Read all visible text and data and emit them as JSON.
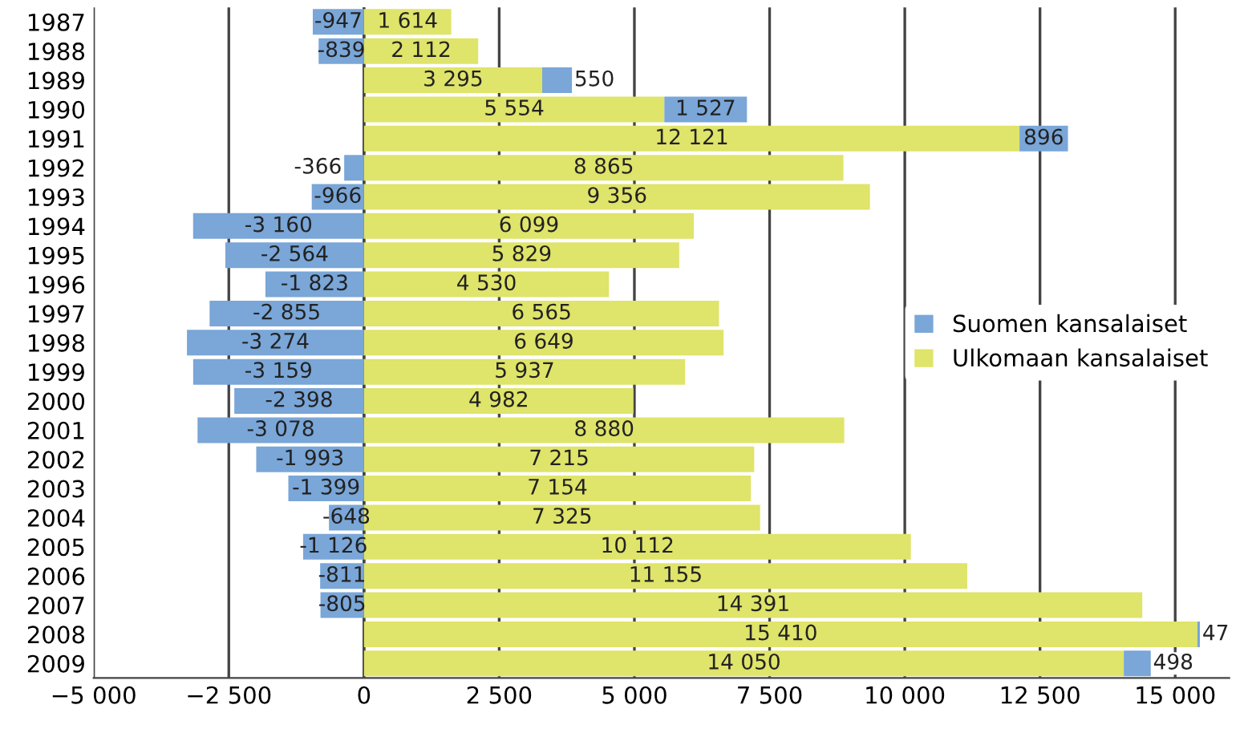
{
  "chart_data": {
    "type": "bar",
    "orientation": "horizontal",
    "stacked": true,
    "categories": [
      "1987",
      "1988",
      "1989",
      "1990",
      "1991",
      "1992",
      "1993",
      "1994",
      "1995",
      "1996",
      "1997",
      "1998",
      "1999",
      "2000",
      "2001",
      "2002",
      "2003",
      "2004",
      "2005",
      "2006",
      "2007",
      "2008",
      "2009"
    ],
    "series": [
      {
        "name": "Ulkomaan kansalaiset",
        "color": "#dfe46a",
        "values": [
          1614,
          2112,
          3295,
          5554,
          12121,
          8865,
          9356,
          6099,
          5829,
          4530,
          6565,
          6649,
          5937,
          4982,
          8880,
          7215,
          7154,
          7325,
          10112,
          11155,
          14391,
          15410,
          14050
        ],
        "value_labels": [
          "1 614",
          "2 112",
          "3 295",
          "5 554",
          "12 121",
          "8 865",
          "9 356",
          "6 099",
          "5 829",
          "4 530",
          "6 565",
          "6 649",
          "5 937",
          "4 982",
          "8 880",
          "7 215",
          "7 154",
          "7 325",
          "10 112",
          "11 155",
          "14 391",
          "15 410",
          "14 050"
        ]
      },
      {
        "name": "Suomen kansalaiset",
        "color": "#7aa6d8",
        "values": [
          -947,
          -839,
          550,
          1527,
          896,
          -366,
          -966,
          -3160,
          -2564,
          -1823,
          -2855,
          -3274,
          -3159,
          -2398,
          -3078,
          -1993,
          -1399,
          -648,
          -1126,
          -811,
          -805,
          47,
          498
        ],
        "value_labels": [
          "-947",
          "-839",
          "550",
          "1 527",
          "896",
          "-366",
          "-966",
          "-3 160",
          "-2 564",
          "-1 823",
          "-2 855",
          "-3 274",
          "-3 159",
          "-2 398",
          "-3 078",
          "-1 993",
          "-1 399",
          "-648",
          "-1 126",
          "-811",
          "-805",
          "47",
          "498"
        ]
      }
    ],
    "xlim": [
      -5000,
      16000
    ],
    "xticks": [
      {
        "value": -5000,
        "label": "−5 000"
      },
      {
        "value": -2500,
        "label": "−2 500"
      },
      0,
      {
        "value": 2500,
        "label": "2 500"
      },
      {
        "value": 5000,
        "label": "5 000"
      },
      {
        "value": 7500,
        "label": "7 500"
      },
      {
        "value": 10000,
        "label": "10 000"
      },
      {
        "value": 12500,
        "label": "12 500"
      },
      {
        "value": 15000,
        "label": "15 000"
      }
    ],
    "grid": "x",
    "legend": "center right"
  }
}
